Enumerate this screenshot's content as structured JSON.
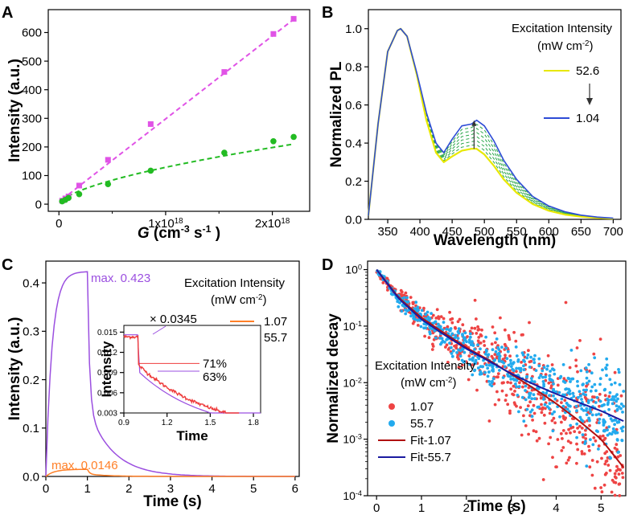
{
  "chart_data": [
    {
      "type": "scatter",
      "panel": "A",
      "xlabel_italic": "G",
      "xlabel_rest": " (cm",
      "xlabel_exp1": "-3",
      "xlabel_mid": " s",
      "xlabel_exp2": "-1",
      "xlabel_end": " )",
      "ylabel": "Intensity (a.u.)",
      "xlim": [
        -1e+17,
        2.35e+18
      ],
      "ylim": [
        -25,
        680
      ],
      "xticks": [
        0,
        1e+18,
        2e+18
      ],
      "xtick_labels": [
        "0",
        "1x10",
        "2x10"
      ],
      "xtick_exp": "18",
      "yticks": [
        0,
        100,
        200,
        300,
        400,
        500,
        600
      ],
      "series": [
        {
          "name": "magenta",
          "color": "#e053e6",
          "x": [
            3e+16,
            6e+16,
            9e+16,
            1.9e+17,
            4.6e+17,
            8.6e+17,
            1.55e+18,
            2.01e+18,
            2.2e+18
          ],
          "y": [
            12,
            20,
            27,
            65,
            155,
            280,
            462,
            595,
            648
          ]
        },
        {
          "name": "green",
          "color": "#22bb22",
          "x": [
            3e+16,
            6e+16,
            9e+16,
            1.9e+17,
            4.6e+17,
            8.6e+17,
            1.55e+18,
            2.01e+18,
            2.2e+18
          ],
          "y": [
            10,
            15,
            22,
            35,
            70,
            117,
            180,
            220,
            235
          ]
        }
      ]
    },
    {
      "type": "line",
      "panel": "B",
      "xlabel": "Wavelength (nm)",
      "ylabel": "Normalized PL",
      "xlim": [
        320,
        712
      ],
      "ylim": [
        0,
        1.1
      ],
      "xticks": [
        350,
        400,
        450,
        500,
        550,
        600,
        650,
        700
      ],
      "yticks": [
        0.0,
        0.2,
        0.4,
        0.6,
        0.8,
        1.0
      ],
      "legend_title_line1": "Excitation Intensity",
      "legend_title_line2": "(mW cm",
      "legend_title_exp": "-2",
      "legend_title_end": ")",
      "legend": [
        {
          "label": "52.6",
          "color": "#e8e800"
        },
        {
          "label": "1.04",
          "color": "#2d4bd6"
        }
      ],
      "spectrum_wavelength": [
        320,
        335,
        350,
        365,
        370,
        380,
        395,
        410,
        425,
        437,
        450,
        465,
        480,
        488,
        500,
        515,
        530,
        550,
        575,
        600,
        625,
        650,
        675,
        700
      ],
      "series": [
        {
          "name": "52.6",
          "color": "#e8e800",
          "values": [
            0.02,
            0.5,
            0.88,
            0.99,
            1.0,
            0.96,
            0.76,
            0.52,
            0.35,
            0.3,
            0.33,
            0.36,
            0.37,
            0.37,
            0.34,
            0.28,
            0.21,
            0.14,
            0.08,
            0.045,
            0.025,
            0.014,
            0.008,
            0.004
          ]
        },
        {
          "name": "1.04",
          "color": "#2d4bd6",
          "values": [
            0.02,
            0.5,
            0.88,
            0.99,
            1.0,
            0.96,
            0.77,
            0.56,
            0.4,
            0.35,
            0.42,
            0.49,
            0.5,
            0.52,
            0.49,
            0.41,
            0.31,
            0.21,
            0.12,
            0.07,
            0.04,
            0.022,
            0.012,
            0.006
          ]
        }
      ],
      "intermediate_series_count": 6
    },
    {
      "type": "line",
      "panel": "C",
      "xlabel": "Time (s)",
      "ylabel": "Intensity (a.u.)",
      "xlim": [
        0,
        6.1
      ],
      "ylim": [
        0,
        0.445
      ],
      "xticks": [
        0,
        1,
        2,
        3,
        4,
        5,
        6
      ],
      "yticks": [
        0.0,
        0.1,
        0.2,
        0.3,
        0.4
      ],
      "legend_title_line1": "Excitation Intensity",
      "legend_title_line2": "(mW cm",
      "legend_title_exp": "-2",
      "legend_title_end": ")",
      "legend": [
        {
          "label": "1.07",
          "color": "#ff7f27"
        },
        {
          "label": "55.7",
          "color": "#9b4fe0"
        }
      ],
      "series": [
        {
          "name": "55.7",
          "color": "#9b4fe0",
          "rise_tau": 0.15,
          "peak": 0.423,
          "decay_tau": 0.6
        },
        {
          "name": "1.07",
          "color": "#ff7f27",
          "rise_tau": 0.2,
          "peak": 0.0146,
          "decay_tau": 0.5
        }
      ],
      "annotations": {
        "max_high": "max. 0.423",
        "max_low": "max. 0.0146"
      },
      "inset": {
        "xlabel": "Time",
        "ylabel": "Intensity",
        "xlim": [
          0.9,
          1.85
        ],
        "ylim": [
          0.003,
          0.016
        ],
        "xticks": [
          0.9,
          1.2,
          1.5,
          1.8
        ],
        "yticks": [
          0.003,
          0.006,
          0.009,
          0.012,
          0.015
        ],
        "ytick_labels": [
          "0.003",
          "0.006",
          "0.009",
          "0.012",
          "0.015"
        ],
        "scale_label": "× 0.0345",
        "pct_orange": "71%",
        "pct_purple": "63%",
        "orange_level": 0.01035,
        "purple_level": 0.0092
      }
    },
    {
      "type": "scatter",
      "panel": "D",
      "xlabel": "Time (s)",
      "ylabel": "Normalized decay",
      "xlim": [
        -0.2,
        5.55
      ],
      "ylim_log10": [
        -4,
        0.15
      ],
      "xticks": [
        0,
        1,
        2,
        3,
        4,
        5
      ],
      "ytick_labels": [
        "10",
        "10",
        "10",
        "10",
        "10"
      ],
      "ytick_exps": [
        "0",
        "-1",
        "-2",
        "-3",
        "-4"
      ],
      "legend_title_line1": "Excitation Intensity",
      "legend_title_line2": "(mW cm",
      "legend_title_exp": "-2",
      "legend_title_end": ")",
      "legend": [
        {
          "label": "1.07",
          "color": "#ee4444",
          "kind": "dot"
        },
        {
          "label": "55.7",
          "color": "#22aaee",
          "kind": "dot"
        },
        {
          "label": "Fit-1.07",
          "color": "#b01010",
          "kind": "line"
        },
        {
          "label": "Fit-55.7",
          "color": "#1a1aa0",
          "kind": "line"
        }
      ],
      "fits": [
        {
          "name": "Fit-1.07",
          "color": "#b01010",
          "t": [
            0,
            0.5,
            1,
            1.5,
            2,
            2.5,
            3,
            3.5,
            4,
            4.5,
            5,
            5.5
          ],
          "log10y": [
            0,
            -0.5,
            -0.85,
            -1.12,
            -1.38,
            -1.6,
            -1.85,
            -2.1,
            -2.37,
            -2.67,
            -3.0,
            -3.5
          ]
        },
        {
          "name": "Fit-55.7",
          "color": "#1a1aa0",
          "t": [
            0,
            0.5,
            1,
            1.5,
            2,
            2.5,
            3,
            3.5,
            4,
            4.5,
            5,
            5.5
          ],
          "log10y": [
            0,
            -0.52,
            -0.88,
            -1.15,
            -1.4,
            -1.62,
            -1.84,
            -2.03,
            -2.2,
            -2.35,
            -2.5,
            -2.68
          ]
        }
      ],
      "scatter_points_per_series": 600
    }
  ],
  "panel_labels": [
    "A",
    "B",
    "C",
    "D"
  ]
}
